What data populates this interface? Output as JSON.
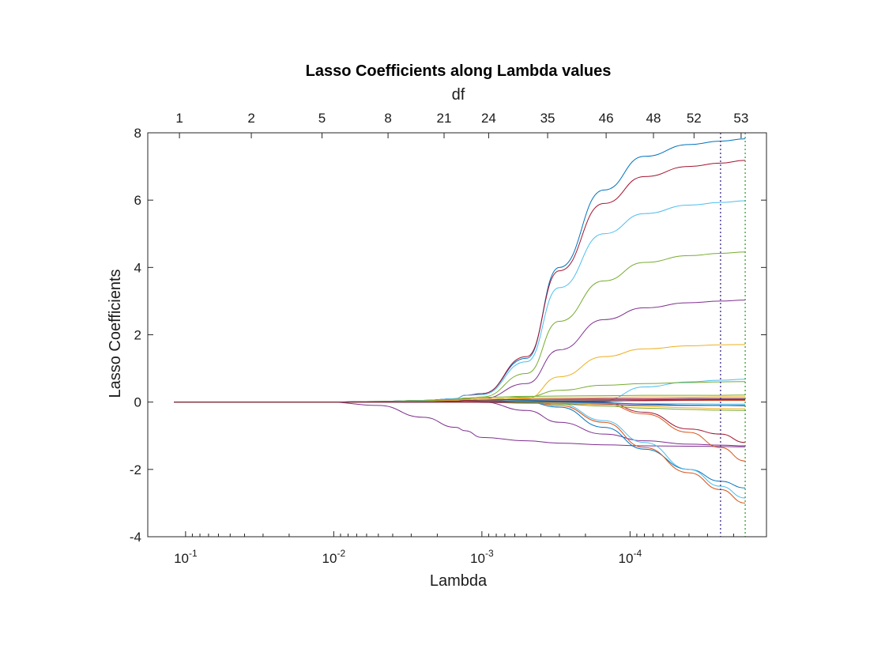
{
  "chart_data": {
    "type": "line",
    "title": "Lasso Coefficients along Lambda values",
    "xlabel": "Lambda",
    "ylabel": "Lasso Coefficients",
    "top_axis_label": "df",
    "x_scale": "log",
    "x_reversed": true,
    "xlim": [
      0.18,
      1.2e-05
    ],
    "ylim": [
      -4,
      8
    ],
    "grid": false,
    "y_ticks": [
      -4,
      -2,
      0,
      2,
      4,
      6,
      8
    ],
    "x_ticks": [
      {
        "value": 0.1,
        "base": "10",
        "exp": "-1"
      },
      {
        "value": 0.01,
        "base": "10",
        "exp": "-2"
      },
      {
        "value": 0.001,
        "base": "10",
        "exp": "-3"
      },
      {
        "value": 0.0001,
        "base": "10",
        "exp": "-4"
      }
    ],
    "df_ticks": [
      {
        "lambda": 0.11,
        "label": "1"
      },
      {
        "lambda": 0.036,
        "label": "2"
      },
      {
        "lambda": 0.012,
        "label": "5"
      },
      {
        "lambda": 0.0043,
        "label": "8"
      },
      {
        "lambda": 0.0018,
        "label": "21"
      },
      {
        "lambda": 0.0009,
        "label": "24"
      },
      {
        "lambda": 0.00036,
        "label": "35"
      },
      {
        "lambda": 0.000145,
        "label": "46"
      },
      {
        "lambda": 6.95e-05,
        "label": "48"
      },
      {
        "lambda": 3.7e-05,
        "label": "52"
      },
      {
        "lambda": 1.78e-05,
        "label": "53"
      }
    ],
    "reference_lines": [
      {
        "lambda": 2.45e-05,
        "color": "#3b2a8a",
        "style": "dotted"
      },
      {
        "lambda": 1.67e-05,
        "color": "#33a02c",
        "style": "dotted"
      }
    ],
    "lambda_points": [
      0.12,
      0.05,
      0.03,
      0.011,
      0.005,
      0.0025,
      0.0015,
      0.0013,
      0.001,
      0.0005,
      0.0003,
      0.00015,
      8e-05,
      4e-05,
      2.45e-05,
      1.67e-05
    ],
    "series": [
      {
        "color": "#0072bd",
        "values": [
          0,
          0,
          0,
          0,
          0.02,
          0.05,
          0.1,
          0.2,
          0.25,
          1.3,
          4.0,
          6.3,
          7.3,
          7.65,
          7.75,
          7.82
        ]
      },
      {
        "color": "#a2142f",
        "values": [
          0,
          0,
          0,
          0,
          0.02,
          0.05,
          0.1,
          0.2,
          0.25,
          1.35,
          3.9,
          5.9,
          6.7,
          7.0,
          7.1,
          7.18
        ]
      },
      {
        "color": "#4dbeee",
        "values": [
          0,
          0,
          0,
          0,
          0.02,
          0.05,
          0.1,
          0.2,
          0.22,
          1.2,
          3.4,
          5.0,
          5.6,
          5.85,
          5.93,
          5.98
        ]
      },
      {
        "color": "#77ac30",
        "values": [
          0,
          0,
          0,
          0,
          0.02,
          0.04,
          0.08,
          0.1,
          0.15,
          0.85,
          2.4,
          3.6,
          4.15,
          4.35,
          4.42,
          4.46
        ]
      },
      {
        "color": "#7e2f8e",
        "values": [
          0,
          0,
          0,
          0,
          0.02,
          0.03,
          0.05,
          0.08,
          0.1,
          0.55,
          1.55,
          2.45,
          2.8,
          2.95,
          3.0,
          3.03
        ]
      },
      {
        "color": "#edb120",
        "values": [
          0,
          0,
          0,
          0,
          0.01,
          0.02,
          0.03,
          0.04,
          0.04,
          0.1,
          0.75,
          1.35,
          1.58,
          1.67,
          1.7,
          1.71
        ]
      },
      {
        "color": "#4dbeee",
        "values": [
          0,
          0,
          0,
          0,
          0,
          0,
          0,
          0,
          0,
          0,
          0,
          0.05,
          0.45,
          0.6,
          0.65,
          0.68
        ]
      },
      {
        "color": "#77ac30",
        "values": [
          0,
          0,
          0,
          0,
          0.01,
          0.02,
          0.03,
          0.05,
          0.06,
          0.15,
          0.35,
          0.5,
          0.55,
          0.58,
          0.6,
          0.61
        ]
      },
      {
        "color": "#7e2f8e",
        "values": [
          0,
          0,
          0,
          0,
          -0.1,
          -0.45,
          -0.75,
          -0.85,
          -1.05,
          -1.15,
          -1.22,
          -1.27,
          -1.3,
          -1.31,
          -1.32,
          -1.33
        ]
      },
      {
        "color": "#7e2f8e",
        "values": [
          0,
          0,
          0,
          0,
          0,
          0,
          0,
          0,
          0,
          -0.25,
          -0.6,
          -0.95,
          -1.15,
          -1.25,
          -1.28,
          -1.3
        ]
      },
      {
        "color": "#0072bd",
        "values": [
          0,
          0,
          0,
          0,
          0,
          0,
          0,
          0,
          0,
          0,
          -0.15,
          -0.75,
          -1.4,
          -2.0,
          -2.35,
          -2.55
        ]
      },
      {
        "color": "#d95319",
        "values": [
          0,
          0,
          0,
          0,
          0,
          0,
          0,
          0,
          0,
          0,
          -0.1,
          -0.6,
          -1.35,
          -2.1,
          -2.6,
          -3.0
        ]
      },
      {
        "color": "#4dbeee",
        "values": [
          0,
          0,
          0,
          0,
          0,
          0,
          0,
          0,
          0,
          0,
          -0.05,
          -0.55,
          -1.2,
          -2.0,
          -2.5,
          -2.85
        ]
      },
      {
        "color": "#d95319",
        "values": [
          0,
          0,
          0,
          0,
          0,
          0,
          0,
          0,
          0,
          0,
          0,
          -0.05,
          -0.35,
          -0.9,
          -1.35,
          -1.75
        ]
      },
      {
        "color": "#a2142f",
        "values": [
          0,
          0,
          0,
          0,
          0,
          0,
          0,
          0,
          0,
          0,
          0,
          0,
          -0.3,
          -0.8,
          -0.95,
          -1.2
        ]
      },
      {
        "color": "#77ac30",
        "values": [
          0,
          0,
          0,
          0,
          0.01,
          0.04,
          0.08,
          0.12,
          0.14,
          0.17,
          0.18,
          0.19,
          0.2,
          0.2,
          0.2,
          0.21
        ]
      },
      {
        "color": "#edb120",
        "values": [
          0,
          0,
          0,
          0,
          0,
          0.02,
          0.05,
          0.08,
          0.1,
          0.12,
          0.13,
          0.14,
          0.15,
          0.15,
          0.16,
          0.16
        ]
      },
      {
        "color": "#a2142f",
        "values": [
          0,
          0,
          0,
          0,
          0,
          0.01,
          0.03,
          0.05,
          0.06,
          0.08,
          0.09,
          0.1,
          0.1,
          0.11,
          0.11,
          0.11
        ]
      },
      {
        "color": "#0072bd",
        "values": [
          0,
          0,
          0,
          0,
          0,
          0,
          0.01,
          0.02,
          0.03,
          0.05,
          0.06,
          0.07,
          0.07,
          0.08,
          0.08,
          0.08
        ]
      },
      {
        "color": "#d95319",
        "values": [
          0,
          0,
          0,
          0,
          0,
          0,
          0,
          0.01,
          0.01,
          0.02,
          0.03,
          0.04,
          0.04,
          0.05,
          0.05,
          0.05
        ]
      },
      {
        "color": "#4dbeee",
        "values": [
          0,
          0,
          0,
          0,
          0,
          0,
          0,
          0,
          0,
          -0.02,
          -0.03,
          -0.04,
          -0.05,
          -0.05,
          -0.06,
          -0.06
        ]
      },
      {
        "color": "#7e2f8e",
        "values": [
          0,
          0,
          0,
          0,
          0,
          0,
          0,
          0,
          -0.01,
          -0.03,
          -0.05,
          -0.07,
          -0.09,
          -0.1,
          -0.1,
          -0.11
        ]
      },
      {
        "color": "#77ac30",
        "values": [
          0,
          0,
          0,
          0,
          0,
          0,
          0,
          0,
          0,
          -0.02,
          -0.06,
          -0.12,
          -0.18,
          -0.22,
          -0.24,
          -0.25
        ]
      },
      {
        "color": "#edb120",
        "values": [
          0,
          0,
          0,
          0,
          0,
          0,
          0,
          0,
          0,
          0,
          -0.03,
          -0.08,
          -0.13,
          -0.17,
          -0.19,
          -0.2
        ]
      },
      {
        "color": "#0072bd",
        "values": [
          0,
          0,
          0,
          0,
          0,
          0,
          0,
          0,
          0,
          0,
          0,
          -0.02,
          -0.06,
          -0.09,
          -0.1,
          -0.1
        ]
      },
      {
        "color": "#a2142f",
        "values": [
          0,
          0,
          0,
          0,
          0,
          0,
          0,
          0,
          0,
          0.01,
          0.02,
          0.03,
          0.05,
          0.06,
          0.07,
          0.07
        ]
      }
    ]
  }
}
